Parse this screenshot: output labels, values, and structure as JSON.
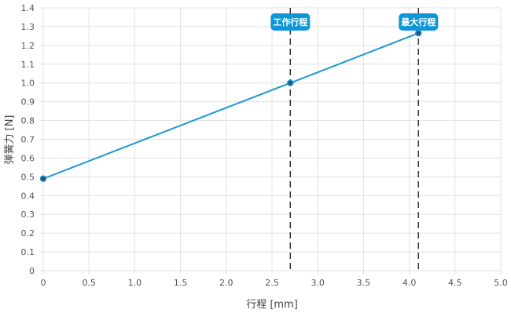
{
  "chart_data": {
    "type": "line",
    "title": "",
    "xlabel": "行程 [mm]",
    "ylabel": "弹簧力 [N]",
    "xlim": [
      0,
      5.0
    ],
    "ylim": [
      0,
      1.4
    ],
    "grid": true,
    "x_ticks": [
      "0",
      "0.5",
      "1.0",
      "1.5",
      "2.0",
      "2.5",
      "3.0",
      "3.5",
      "4.0",
      "4.5",
      "5.0"
    ],
    "y_ticks": [
      "0",
      "0.1",
      "0.2",
      "0.3",
      "0.4",
      "0.5",
      "0.6",
      "0.7",
      "0.8",
      "0.9",
      "1.0",
      "1.1",
      "1.2",
      "1.3",
      "1.4"
    ],
    "series": [
      {
        "x": [
          0,
          2.7,
          4.1
        ],
        "y": [
          0.49,
          1.0,
          1.265
        ],
        "color": "#1a97d5"
      }
    ],
    "annotations": [
      {
        "x": 2.7,
        "label": "工作行程",
        "style": "dashed-vertical"
      },
      {
        "x": 4.1,
        "label": "最大行程",
        "style": "dashed-vertical"
      }
    ],
    "colors": {
      "line": "#1a97d5",
      "label_bg": "#0f96d6",
      "marker": "#2b5470",
      "guide": "#333333",
      "grid": "#e0e0e0"
    }
  }
}
